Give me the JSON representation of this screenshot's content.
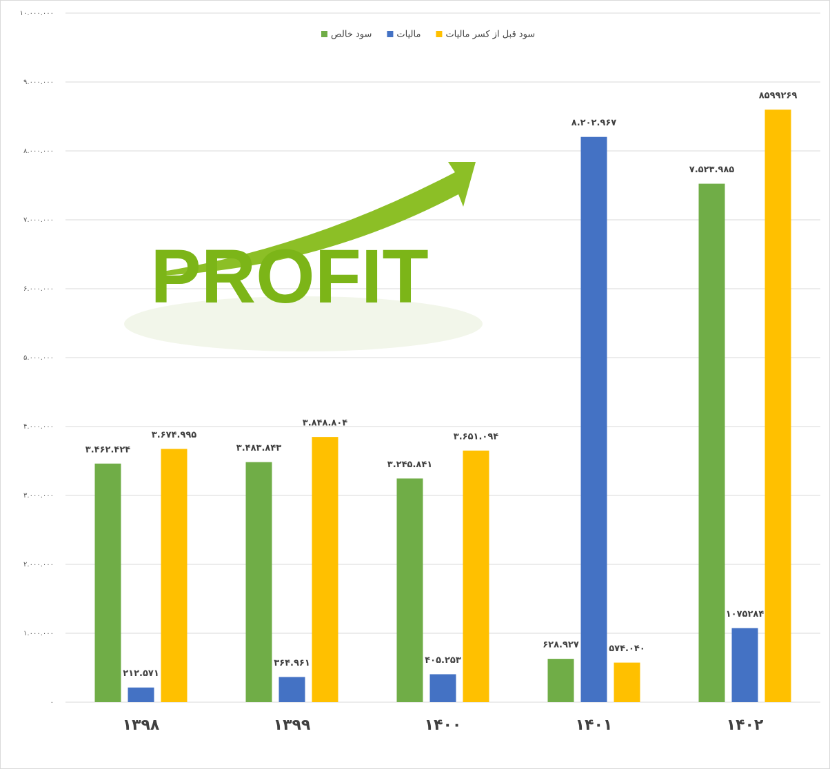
{
  "chart_data": {
    "type": "bar",
    "watermark": "PROFIT",
    "categories": [
      "۱۳۹۸",
      "۱۳۹۹",
      "۱۴۰۰",
      "۱۴۰۱",
      "۱۴۰۲"
    ],
    "series": [
      {
        "name": "سود خالص",
        "color": "#70ad47",
        "values": [
          3462424,
          3483843,
          3245841,
          628927,
          7523985
        ],
        "value_labels": [
          "۳.۴۶۲.۴۲۴",
          "۳.۴۸۳.۸۴۳",
          "۳.۲۴۵.۸۴۱",
          "۶۲۸.۹۲۷",
          "۷.۵۲۳.۹۸۵"
        ]
      },
      {
        "name": "مالیات",
        "color": "#4472c4",
        "values": [
          212571,
          364961,
          405253,
          8202967,
          1075284
        ],
        "value_labels": [
          "۲۱۲.۵۷۱",
          "۳۶۴.۹۶۱",
          "۴۰۵.۲۵۳",
          "۸.۲۰۲.۹۶۷",
          "۱۰۷۵۲۸۴"
        ]
      },
      {
        "name": "سود قبل از کسر مالیات",
        "color": "#ffc000",
        "values": [
          3674995,
          3848804,
          3651094,
          574040,
          8599269
        ],
        "value_labels": [
          "۳.۶۷۴.۹۹۵",
          "۳.۸۴۸.۸۰۴",
          "۳.۶۵۱.۰۹۴",
          "۵۷۴.۰۴۰",
          "۸۵۹۹۲۶۹"
        ]
      }
    ],
    "ylim": [
      0,
      10000000
    ],
    "yticks": [
      {
        "value": 0,
        "label": "۰"
      },
      {
        "value": 1000000,
        "label": "۱.۰۰۰.۰۰۰"
      },
      {
        "value": 2000000,
        "label": "۲.۰۰۰.۰۰۰"
      },
      {
        "value": 3000000,
        "label": "۳.۰۰۰.۰۰۰"
      },
      {
        "value": 4000000,
        "label": "۴.۰۰۰.۰۰۰"
      },
      {
        "value": 5000000,
        "label": "۵.۰۰۰.۰۰۰"
      },
      {
        "value": 6000000,
        "label": "۶.۰۰۰.۰۰۰"
      },
      {
        "value": 7000000,
        "label": "۷.۰۰۰.۰۰۰"
      },
      {
        "value": 8000000,
        "label": "۸.۰۰۰.۰۰۰"
      },
      {
        "value": 9000000,
        "label": "۹.۰۰۰.۰۰۰"
      },
      {
        "value": 10000000,
        "label": "۱۰.۰۰۰.۰۰۰"
      }
    ],
    "grid": true,
    "legend": "top"
  }
}
